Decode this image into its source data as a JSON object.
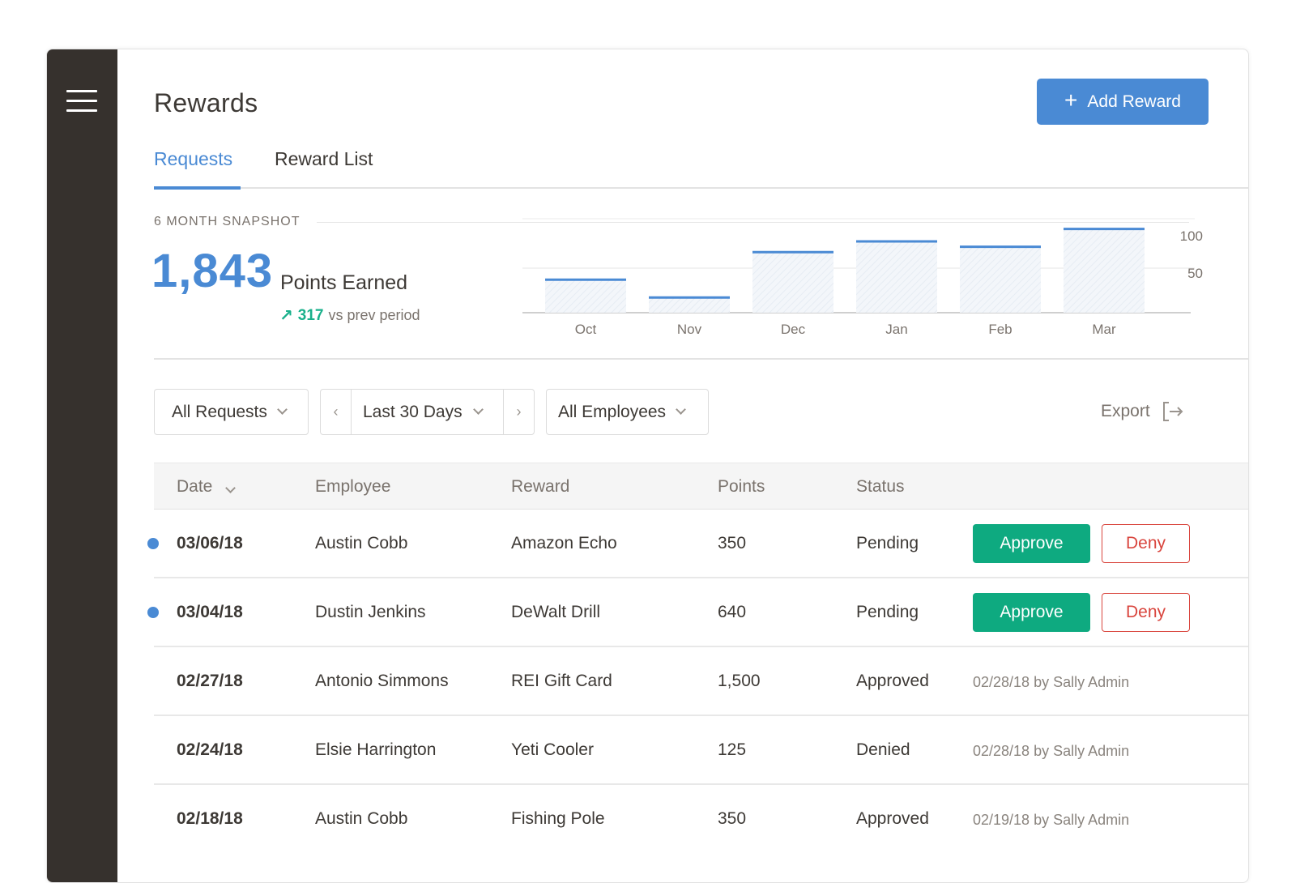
{
  "header": {
    "title": "Rewards",
    "add_button_label": "Add Reward"
  },
  "tabs": [
    {
      "label": "Requests",
      "active": true
    },
    {
      "label": "Reward List",
      "active": false
    }
  ],
  "snapshot": {
    "label": "6 MONTH SNAPSHOT",
    "total_points": "1,843",
    "caption": "Points Earned",
    "delta": "317",
    "delta_caption": "vs prev period"
  },
  "chart_data": {
    "type": "bar",
    "categories": [
      "Oct",
      "Nov",
      "Dec",
      "Jan",
      "Feb",
      "Mar"
    ],
    "values": [
      37,
      17,
      68,
      80,
      74,
      94
    ],
    "yticks": [
      50,
      100
    ],
    "ylim": [
      0,
      100
    ],
    "grid": true,
    "accent_color": "#4a8ad4"
  },
  "filters": {
    "requests": "All Requests",
    "date_range": "Last 30 Days",
    "employees": "All Employees",
    "export": "Export"
  },
  "table": {
    "columns": [
      "Date",
      "Employee",
      "Reward",
      "Points",
      "Status"
    ],
    "rows": [
      {
        "date": "03/06/18",
        "employee": "Austin Cobb",
        "reward": "Amazon Echo",
        "points": "350",
        "status": "Pending",
        "new": true,
        "approve": "Approve",
        "deny": "Deny",
        "note": ""
      },
      {
        "date": "03/04/18",
        "employee": "Dustin Jenkins",
        "reward": "DeWalt Drill",
        "points": "640",
        "status": "Pending",
        "new": true,
        "approve": "Approve",
        "deny": "Deny",
        "note": ""
      },
      {
        "date": "02/27/18",
        "employee": "Antonio Simmons",
        "reward": "REI Gift Card",
        "points": "1,500",
        "status": "Approved",
        "new": false,
        "note": "02/28/18 by Sally Admin"
      },
      {
        "date": "02/24/18",
        "employee": "Elsie Harrington",
        "reward": "Yeti Cooler",
        "points": "125",
        "status": "Denied",
        "new": false,
        "note": "02/28/18 by Sally Admin"
      },
      {
        "date": "02/18/18",
        "employee": "Austin Cobb",
        "reward": "Fishing Pole",
        "points": "350",
        "status": "Approved",
        "new": false,
        "note": "02/19/18 by Sally Admin"
      }
    ]
  },
  "icons": {
    "menu": "hamburger-menu-icon",
    "add": "plus-icon",
    "trend": "trend-up-arrow-icon",
    "export": "export-icon"
  },
  "colors": {
    "accent": "#4a8ad4",
    "success": "#0eaa80",
    "danger": "#d9453d",
    "sidebar": "#36312d"
  }
}
